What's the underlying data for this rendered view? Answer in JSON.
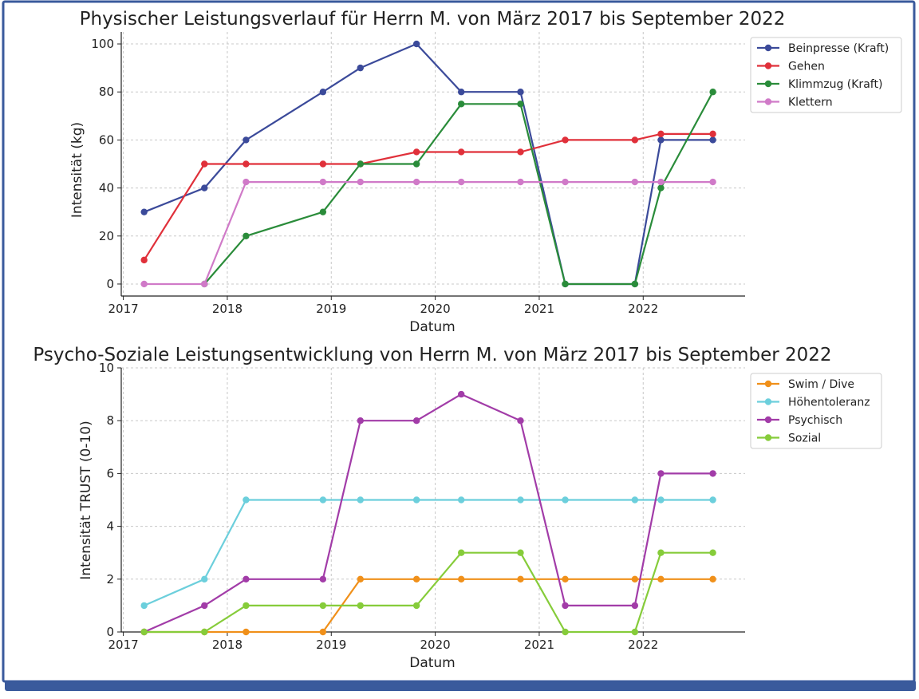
{
  "colors": {
    "frame_border": "#3a5a9c",
    "frame_shadow": "#3a5a9c",
    "grid": "#c8c8c8",
    "axis": "#222222"
  },
  "chart_data": [
    {
      "type": "line",
      "title": "Physischer Leistungsverlauf für Herrn M. von März 2017 bis September 2022",
      "xlabel": "Datum",
      "ylabel": "Intensität (kg)",
      "xlim": [
        2016.98,
        2022.98
      ],
      "ylim": [
        -5,
        105
      ],
      "x_ticks": [
        2017,
        2018,
        2019,
        2020,
        2021,
        2022
      ],
      "x_tick_labels": [
        "2017",
        "2018",
        "2019",
        "2020",
        "2021",
        "2022"
      ],
      "y_ticks": [
        0,
        20,
        40,
        60,
        80,
        100
      ],
      "y_tick_labels": [
        "0",
        "20",
        "40",
        "60",
        "80",
        "100"
      ],
      "grid": true,
      "legend_position": "top-right",
      "x": [
        2017.2,
        2017.78,
        2018.18,
        2018.92,
        2019.28,
        2019.82,
        2020.25,
        2020.82,
        2021.25,
        2021.92,
        2022.17,
        2022.67
      ],
      "series": [
        {
          "name": "Beinpresse (Kraft)",
          "color": "#3b4a9a",
          "values": [
            30,
            40,
            60,
            80,
            90,
            100,
            80,
            80,
            0,
            0,
            60,
            60
          ]
        },
        {
          "name": "Gehen",
          "color": "#e0303a",
          "values": [
            10,
            50,
            50,
            50,
            50,
            55,
            55,
            55,
            60,
            60,
            62.5,
            62.5
          ]
        },
        {
          "name": "Klimmzug (Kraft)",
          "color": "#2a8c3a",
          "values": [
            null,
            0,
            20,
            30,
            50,
            50,
            75,
            75,
            0,
            0,
            40,
            80
          ]
        },
        {
          "name": "Klettern",
          "color": "#d07ac8",
          "values": [
            0,
            0,
            42.5,
            42.5,
            42.5,
            42.5,
            42.5,
            42.5,
            42.5,
            42.5,
            42.5,
            42.5
          ]
        }
      ]
    },
    {
      "type": "line",
      "title": "Psycho-Soziale Leistungsentwicklung von Herrn M. von März 2017 bis September 2022",
      "xlabel": "Datum",
      "ylabel": "Intensität TRUST (0-10)",
      "xlim": [
        2016.98,
        2022.98
      ],
      "ylim": [
        0,
        10
      ],
      "x_ticks": [
        2017,
        2018,
        2019,
        2020,
        2021,
        2022
      ],
      "x_tick_labels": [
        "2017",
        "2018",
        "2019",
        "2020",
        "2021",
        "2022"
      ],
      "y_ticks": [
        0,
        2,
        4,
        6,
        8,
        10
      ],
      "y_tick_labels": [
        "0",
        "2",
        "4",
        "6",
        "8",
        "10"
      ],
      "grid": true,
      "legend_position": "top-right",
      "x": [
        2017.2,
        2017.78,
        2018.18,
        2018.92,
        2019.28,
        2019.82,
        2020.25,
        2020.82,
        2021.25,
        2021.92,
        2022.17,
        2022.67
      ],
      "series": [
        {
          "name": "Swim / Dive",
          "color": "#f0901a",
          "values": [
            0,
            0,
            0,
            0,
            2,
            2,
            2,
            2,
            2,
            2,
            2,
            2
          ]
        },
        {
          "name": "Höhentoleranz",
          "color": "#6ccfdc",
          "values": [
            1,
            2,
            5,
            5,
            5,
            5,
            5,
            5,
            5,
            5,
            5,
            5
          ]
        },
        {
          "name": "Psychisch",
          "color": "#a23ca8",
          "values": [
            0,
            1,
            2,
            2,
            8,
            8,
            9,
            8,
            1,
            1,
            6,
            6
          ]
        },
        {
          "name": "Sozial",
          "color": "#86cc3a",
          "values": [
            0,
            0,
            1,
            1,
            1,
            1,
            3,
            3,
            0,
            0,
            3,
            3
          ]
        }
      ]
    }
  ]
}
